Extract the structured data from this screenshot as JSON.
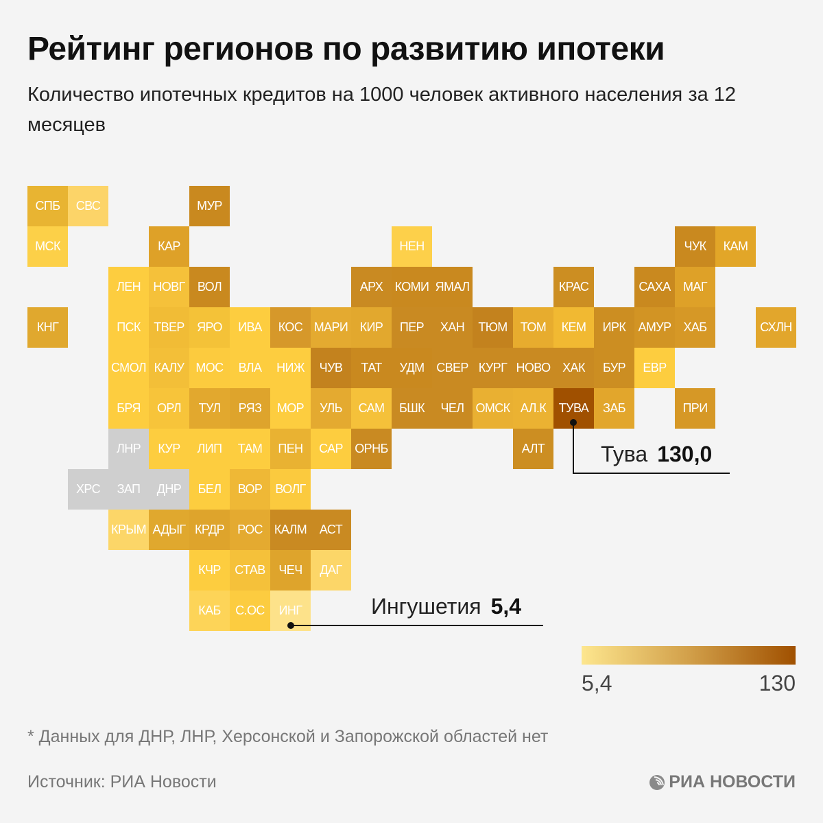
{
  "header": {
    "title": "Рейтинг регионов по развитию ипотеки",
    "subtitle": "Количество ипотечных кредитов на 1000 человек активного населения за 12 месяцев"
  },
  "chart_data": {
    "type": "heatmap",
    "subtype": "tile-grid-map",
    "title": "Рейтинг регионов по развитию ипотеки",
    "subtitle": "Количество ипотечных кредитов на 1000 человек активного населения за 12 месяцев",
    "color_scale": {
      "min": 5.4,
      "max": 130,
      "min_label": "5,4",
      "max_label": "130",
      "min_color": "#fde28a",
      "mid_color": "#d19a3c",
      "max_color": "#a05000",
      "nodata_color": "#cfcfcf"
    },
    "tiles": [
      {
        "label": "СПБ",
        "col": 0,
        "row": 0,
        "color": "#e8b432"
      },
      {
        "label": "СВС",
        "col": 1,
        "row": 0,
        "color": "#fcd468"
      },
      {
        "label": "МУР",
        "col": 4,
        "row": 0,
        "color": "#c9891f"
      },
      {
        "label": "МСК",
        "col": 0,
        "row": 1,
        "color": "#fcd048"
      },
      {
        "label": "КАР",
        "col": 3,
        "row": 1,
        "color": "#dea128"
      },
      {
        "label": "НЕН",
        "col": 9,
        "row": 1,
        "color": "#fdd04a"
      },
      {
        "label": "ЧУК",
        "col": 16,
        "row": 1,
        "color": "#c9891f"
      },
      {
        "label": "КАМ",
        "col": 17,
        "row": 1,
        "color": "#e2a628"
      },
      {
        "label": "ЛЕН",
        "col": 2,
        "row": 2,
        "color": "#fdcd3f"
      },
      {
        "label": "НОВГ",
        "col": 3,
        "row": 2,
        "color": "#f5c13a"
      },
      {
        "label": "ВОЛ",
        "col": 4,
        "row": 2,
        "color": "#c9891f"
      },
      {
        "label": "АРХ",
        "col": 8,
        "row": 2,
        "color": "#c98a22"
      },
      {
        "label": "КОМИ",
        "col": 9,
        "row": 2,
        "color": "#c9891f"
      },
      {
        "label": "ЯМАЛ",
        "col": 10,
        "row": 2,
        "color": "#c9891f"
      },
      {
        "label": "КРАС",
        "col": 13,
        "row": 2,
        "color": "#cc8e22"
      },
      {
        "label": "САХА",
        "col": 15,
        "row": 2,
        "color": "#c9891f"
      },
      {
        "label": "МАГ",
        "col": 16,
        "row": 2,
        "color": "#dea128"
      },
      {
        "label": "КНГ",
        "col": 0,
        "row": 3,
        "color": "#e0a82e"
      },
      {
        "label": "ПСК",
        "col": 2,
        "row": 3,
        "color": "#fdcd3f"
      },
      {
        "label": "ТВЕР",
        "col": 3,
        "row": 3,
        "color": "#f1bc36"
      },
      {
        "label": "ЯРО",
        "col": 4,
        "row": 3,
        "color": "#f4c238"
      },
      {
        "label": "ИВА",
        "col": 5,
        "row": 3,
        "color": "#fdcd3f"
      },
      {
        "label": "КОС",
        "col": 6,
        "row": 3,
        "color": "#d6982a"
      },
      {
        "label": "МАРИ",
        "col": 7,
        "row": 3,
        "color": "#e4aa30"
      },
      {
        "label": "КИР",
        "col": 8,
        "row": 3,
        "color": "#e2a82e"
      },
      {
        "label": "ПЕР",
        "col": 9,
        "row": 3,
        "color": "#c98a22"
      },
      {
        "label": "ХАН",
        "col": 10,
        "row": 3,
        "color": "#c98a22"
      },
      {
        "label": "ТЮМ",
        "col": 11,
        "row": 3,
        "color": "#c3821e"
      },
      {
        "label": "ТОМ",
        "col": 12,
        "row": 3,
        "color": "#e7ac2e"
      },
      {
        "label": "КЕМ",
        "col": 13,
        "row": 3,
        "color": "#f1b932"
      },
      {
        "label": "ИРК",
        "col": 14,
        "row": 3,
        "color": "#cc8e22"
      },
      {
        "label": "АМУР",
        "col": 15,
        "row": 3,
        "color": "#d29424"
      },
      {
        "label": "ХАБ",
        "col": 16,
        "row": 3,
        "color": "#d69826"
      },
      {
        "label": "СХЛН",
        "col": 18,
        "row": 3,
        "color": "#e2a62c"
      },
      {
        "label": "СМОЛ",
        "col": 2,
        "row": 4,
        "color": "#fdcd3f"
      },
      {
        "label": "КАЛУ",
        "col": 3,
        "row": 4,
        "color": "#f3bf38"
      },
      {
        "label": "МОС",
        "col": 4,
        "row": 4,
        "color": "#fccb3e"
      },
      {
        "label": "ВЛА",
        "col": 5,
        "row": 4,
        "color": "#fdcd3f"
      },
      {
        "label": "НИЖ",
        "col": 6,
        "row": 4,
        "color": "#fdcd3f"
      },
      {
        "label": "ЧУВ",
        "col": 7,
        "row": 4,
        "color": "#c3821e"
      },
      {
        "label": "ТАТ",
        "col": 8,
        "row": 4,
        "color": "#c9891f"
      },
      {
        "label": "УДМ",
        "col": 9,
        "row": 4,
        "color": "#c9891f"
      },
      {
        "label": "СВЕР",
        "col": 10,
        "row": 4,
        "color": "#c98a22"
      },
      {
        "label": "КУРГ",
        "col": 11,
        "row": 4,
        "color": "#c98a22"
      },
      {
        "label": "НОВО",
        "col": 12,
        "row": 4,
        "color": "#c98a22"
      },
      {
        "label": "ХАК",
        "col": 13,
        "row": 4,
        "color": "#c98a22"
      },
      {
        "label": "БУР",
        "col": 14,
        "row": 4,
        "color": "#cc8e22"
      },
      {
        "label": "ЕВР",
        "col": 15,
        "row": 4,
        "color": "#fdcd3f"
      },
      {
        "label": "БРЯ",
        "col": 2,
        "row": 5,
        "color": "#fdcd3f"
      },
      {
        "label": "ОРЛ",
        "col": 3,
        "row": 5,
        "color": "#f7c43a"
      },
      {
        "label": "ТУЛ",
        "col": 4,
        "row": 5,
        "color": "#e2a82e"
      },
      {
        "label": "РЯЗ",
        "col": 5,
        "row": 5,
        "color": "#dea42c"
      },
      {
        "label": "МОР",
        "col": 6,
        "row": 5,
        "color": "#fdcd3f"
      },
      {
        "label": "УЛЬ",
        "col": 7,
        "row": 5,
        "color": "#e4aa30"
      },
      {
        "label": "САМ",
        "col": 8,
        "row": 5,
        "color": "#f5c13a"
      },
      {
        "label": "БШК",
        "col": 9,
        "row": 5,
        "color": "#c98a22"
      },
      {
        "label": "ЧЕЛ",
        "col": 10,
        "row": 5,
        "color": "#c98a22"
      },
      {
        "label": "ОМСК",
        "col": 11,
        "row": 5,
        "color": "#e9b032"
      },
      {
        "label": "АЛ.К",
        "col": 12,
        "row": 5,
        "color": "#ebb232"
      },
      {
        "label": "ТУВА",
        "col": 13,
        "row": 5,
        "color": "#a05000"
      },
      {
        "label": "ЗАБ",
        "col": 14,
        "row": 5,
        "color": "#e2a62c"
      },
      {
        "label": "ПРИ",
        "col": 16,
        "row": 5,
        "color": "#d69826"
      },
      {
        "label": "ЛНР",
        "col": 2,
        "row": 6,
        "color": "#cfcfcf",
        "nodata": true
      },
      {
        "label": "КУР",
        "col": 3,
        "row": 6,
        "color": "#fdcd3f"
      },
      {
        "label": "ЛИП",
        "col": 4,
        "row": 6,
        "color": "#fdcd3f"
      },
      {
        "label": "ТАМ",
        "col": 5,
        "row": 6,
        "color": "#fdcd3f"
      },
      {
        "label": "ПЕН",
        "col": 6,
        "row": 6,
        "color": "#e9b232"
      },
      {
        "label": "САР",
        "col": 7,
        "row": 6,
        "color": "#fdcd3f"
      },
      {
        "label": "ОРНБ",
        "col": 8,
        "row": 6,
        "color": "#c98a22"
      },
      {
        "label": "АЛТ",
        "col": 12,
        "row": 6,
        "color": "#cc8e22"
      },
      {
        "label": "ХРС",
        "col": 1,
        "row": 7,
        "color": "#cfcfcf",
        "nodata": true
      },
      {
        "label": "ЗАП",
        "col": 2,
        "row": 7,
        "color": "#cfcfcf",
        "nodata": true
      },
      {
        "label": "ДНР",
        "col": 3,
        "row": 7,
        "color": "#cfcfcf",
        "nodata": true
      },
      {
        "label": "БЕЛ",
        "col": 4,
        "row": 7,
        "color": "#fdcd3f"
      },
      {
        "label": "ВОР",
        "col": 5,
        "row": 7,
        "color": "#efb836"
      },
      {
        "label": "ВОЛГ",
        "col": 6,
        "row": 7,
        "color": "#fbca3e"
      },
      {
        "label": "КРЫМ",
        "col": 2,
        "row": 8,
        "color": "#fcd668"
      },
      {
        "label": "АДЫГ",
        "col": 3,
        "row": 8,
        "color": "#e0a82e"
      },
      {
        "label": "КРДР",
        "col": 4,
        "row": 8,
        "color": "#dea42c"
      },
      {
        "label": "РОС",
        "col": 5,
        "row": 8,
        "color": "#e4aa30"
      },
      {
        "label": "КАЛМ",
        "col": 6,
        "row": 8,
        "color": "#c98a22"
      },
      {
        "label": "АСТ",
        "col": 7,
        "row": 8,
        "color": "#c98a22"
      },
      {
        "label": "КЧР",
        "col": 4,
        "row": 9,
        "color": "#fdcd3f"
      },
      {
        "label": "СТАВ",
        "col": 5,
        "row": 9,
        "color": "#f5c13a"
      },
      {
        "label": "ЧЕЧ",
        "col": 6,
        "row": 9,
        "color": "#dea42c"
      },
      {
        "label": "ДАГ",
        "col": 7,
        "row": 9,
        "color": "#fcd668"
      },
      {
        "label": "КАБ",
        "col": 4,
        "row": 10,
        "color": "#fdd458"
      },
      {
        "label": "С.ОС",
        "col": 5,
        "row": 10,
        "color": "#fccc40"
      },
      {
        "label": "ИНГ",
        "col": 6,
        "row": 10,
        "color": "#fde28a"
      }
    ],
    "annotations": [
      {
        "region": "Тува",
        "tile": "ТУВА",
        "value": 130.0,
        "value_label": "130,0"
      },
      {
        "region": "Ингушетия",
        "tile": "ИНГ",
        "value": 5.4,
        "value_label": "5,4"
      }
    ],
    "nodata_regions": [
      "ДНР",
      "ЛНР",
      "ХРС",
      "ЗАП"
    ]
  },
  "callouts": {
    "tuva": {
      "name": "Тува",
      "value": "130,0"
    },
    "ingushetia": {
      "name": "Ингушетия",
      "value": "5,4"
    }
  },
  "legend": {
    "min_label": "5,4",
    "max_label": "130"
  },
  "footer": {
    "note": "* Данных для ДНР, ЛНР, Херсонской и Запорожской областей нет",
    "source": "Источник: РИА Новости",
    "logo_text": "РИА НОВОСТИ",
    "logo_icon": "ria-globe-icon"
  }
}
